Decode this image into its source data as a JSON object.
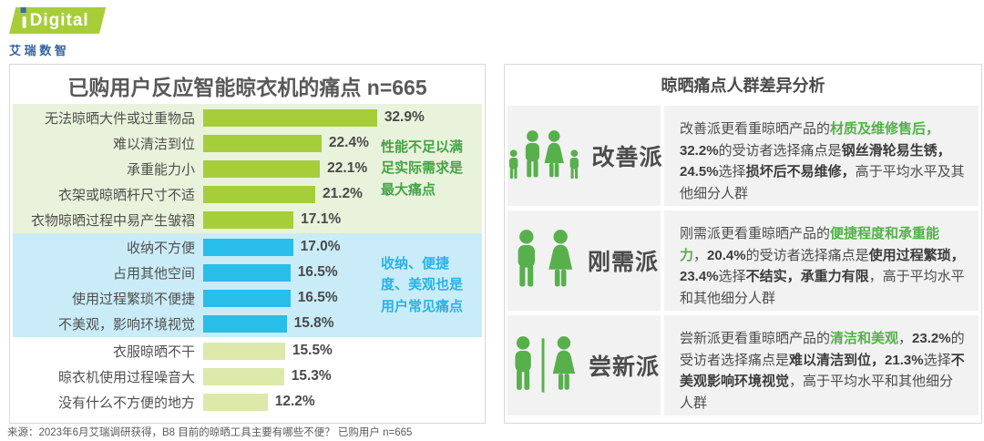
{
  "logo": {
    "brand": "Digital",
    "subtext": "艾 瑞 数 智"
  },
  "source": "来源：2023年6月艾瑞调研获得，B8 目前的晾晒工具主要有哪些不便？ 已购用户 n=665",
  "chart_data": {
    "type": "bar",
    "orientation": "horizontal",
    "title": "已购用户反应智能晾衣机的痛点 n=665",
    "value_suffix": "%",
    "xlim": [
      0,
      35
    ],
    "bands": [
      {
        "name": "performance",
        "bg": "#e9f3db",
        "bar_color": "#a6ce3b",
        "annotation": "性能不足以满足实际需求是最大痛点",
        "annotation_color": "#43a447",
        "items": [
          {
            "label": "无法晾晒大件或过重物品",
            "value": 32.9
          },
          {
            "label": "难以清洁到位",
            "value": 22.4
          },
          {
            "label": "承重能力小",
            "value": 22.1
          },
          {
            "label": "衣架或晾晒杆尺寸不适",
            "value": 21.2
          },
          {
            "label": "衣物晾晒过程中易产生皱褶",
            "value": 17.1
          }
        ]
      },
      {
        "name": "convenience",
        "bg": "#c9ecf8",
        "bar_color": "#29bde9",
        "annotation": "收纳、便捷度、美观也是用户常见痛点",
        "annotation_color": "#29b2e6",
        "items": [
          {
            "label": "收纳不方便",
            "value": 17.0
          },
          {
            "label": "占用其他空间",
            "value": 16.5
          },
          {
            "label": "使用过程繁琐不便捷",
            "value": 16.5
          },
          {
            "label": "不美观，影响环境视觉",
            "value": 15.8
          }
        ]
      },
      {
        "name": "other",
        "bg": "#ffffff",
        "bar_color": "#dce9ab",
        "annotation": "",
        "annotation_color": "",
        "items": [
          {
            "label": "衣服晾晒不干",
            "value": 15.5
          },
          {
            "label": "晾衣机使用过程噪音大",
            "value": 15.3
          },
          {
            "label": "没有什么不方便的地方",
            "value": 12.2
          }
        ]
      }
    ]
  },
  "right_panel": {
    "title": "晾晒痛点人群差异分析",
    "groups": [
      {
        "name": "改善派",
        "icon": "family-icon",
        "segments": [
          {
            "t": "改善派更看重晾晒产品的",
            "s": "n"
          },
          {
            "t": "材质及维修售后，",
            "s": "g"
          },
          {
            "t": "32.2%",
            "s": "b"
          },
          {
            "t": "的受访者选择痛点是",
            "s": "n"
          },
          {
            "t": "钢丝滑轮易生锈，",
            "s": "b"
          },
          {
            "t": "24.5%",
            "s": "b"
          },
          {
            "t": "选择",
            "s": "n"
          },
          {
            "t": "损坏后不易维修，",
            "s": "b"
          },
          {
            "t": "高于平均水平及其他细分人群",
            "s": "n"
          }
        ]
      },
      {
        "name": "刚需派",
        "icon": "couple-icon",
        "segments": [
          {
            "t": "刚需派更看重晾晒产品的",
            "s": "n"
          },
          {
            "t": "便捷程度和承重能力",
            "s": "g"
          },
          {
            "t": "，",
            "s": "n"
          },
          {
            "t": "20.4%",
            "s": "b"
          },
          {
            "t": "的受访者选择痛点是",
            "s": "n"
          },
          {
            "t": "使用过程繁琐，",
            "s": "b"
          },
          {
            "t": "23.4%",
            "s": "b"
          },
          {
            "t": "选择",
            "s": "n"
          },
          {
            "t": "不结实，承重力有限",
            "s": "b"
          },
          {
            "t": "，高于平均水平和其他细分人群",
            "s": "n"
          }
        ]
      },
      {
        "name": "尝新派",
        "icon": "male-female-icon",
        "segments": [
          {
            "t": "尝新派更看重晾晒产品的",
            "s": "n"
          },
          {
            "t": "清洁和美观",
            "s": "g"
          },
          {
            "t": "，",
            "s": "n"
          },
          {
            "t": "23.2%",
            "s": "b"
          },
          {
            "t": "的受访者选择痛点是",
            "s": "n"
          },
          {
            "t": "难以清洁到位，",
            "s": "b"
          },
          {
            "t": "21.3%",
            "s": "b"
          },
          {
            "t": "选择",
            "s": "n"
          },
          {
            "t": "不美观影响环境视觉",
            "s": "b"
          },
          {
            "t": "，高于平均水平和其他细分人群",
            "s": "n"
          }
        ]
      }
    ]
  }
}
